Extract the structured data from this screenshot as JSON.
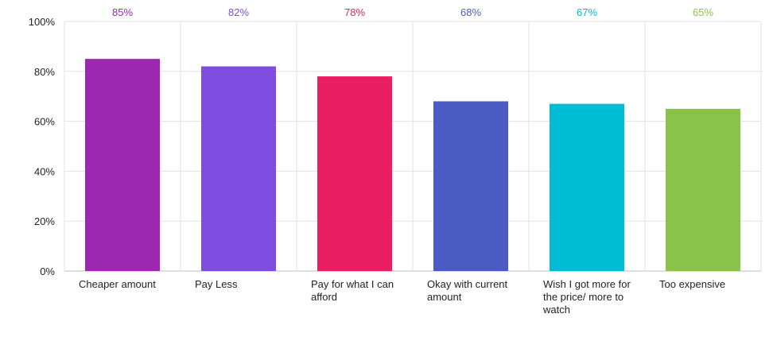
{
  "chart_data": {
    "type": "bar",
    "categories": [
      "Cheaper amount",
      "Pay Less",
      "Pay for what I can afford",
      "Okay with current amount",
      "Wish I got more for the price/ more to watch",
      "Too expensive"
    ],
    "values": [
      85,
      82,
      78,
      68,
      67,
      65
    ],
    "value_labels": [
      "85%",
      "82%",
      "78%",
      "68%",
      "67%",
      "65%"
    ],
    "colors": [
      "#9C27B0",
      "#7E4CDF",
      "#E91E63",
      "#4A5BC4",
      "#00BCD4",
      "#8BC34A"
    ],
    "ylim": [
      0,
      100
    ],
    "yticks": [
      0,
      20,
      40,
      60,
      80,
      100
    ],
    "ytick_labels": [
      "0%",
      "20%",
      "40%",
      "60%",
      "80%",
      "100%"
    ],
    "grid": true,
    "legend": "none"
  }
}
